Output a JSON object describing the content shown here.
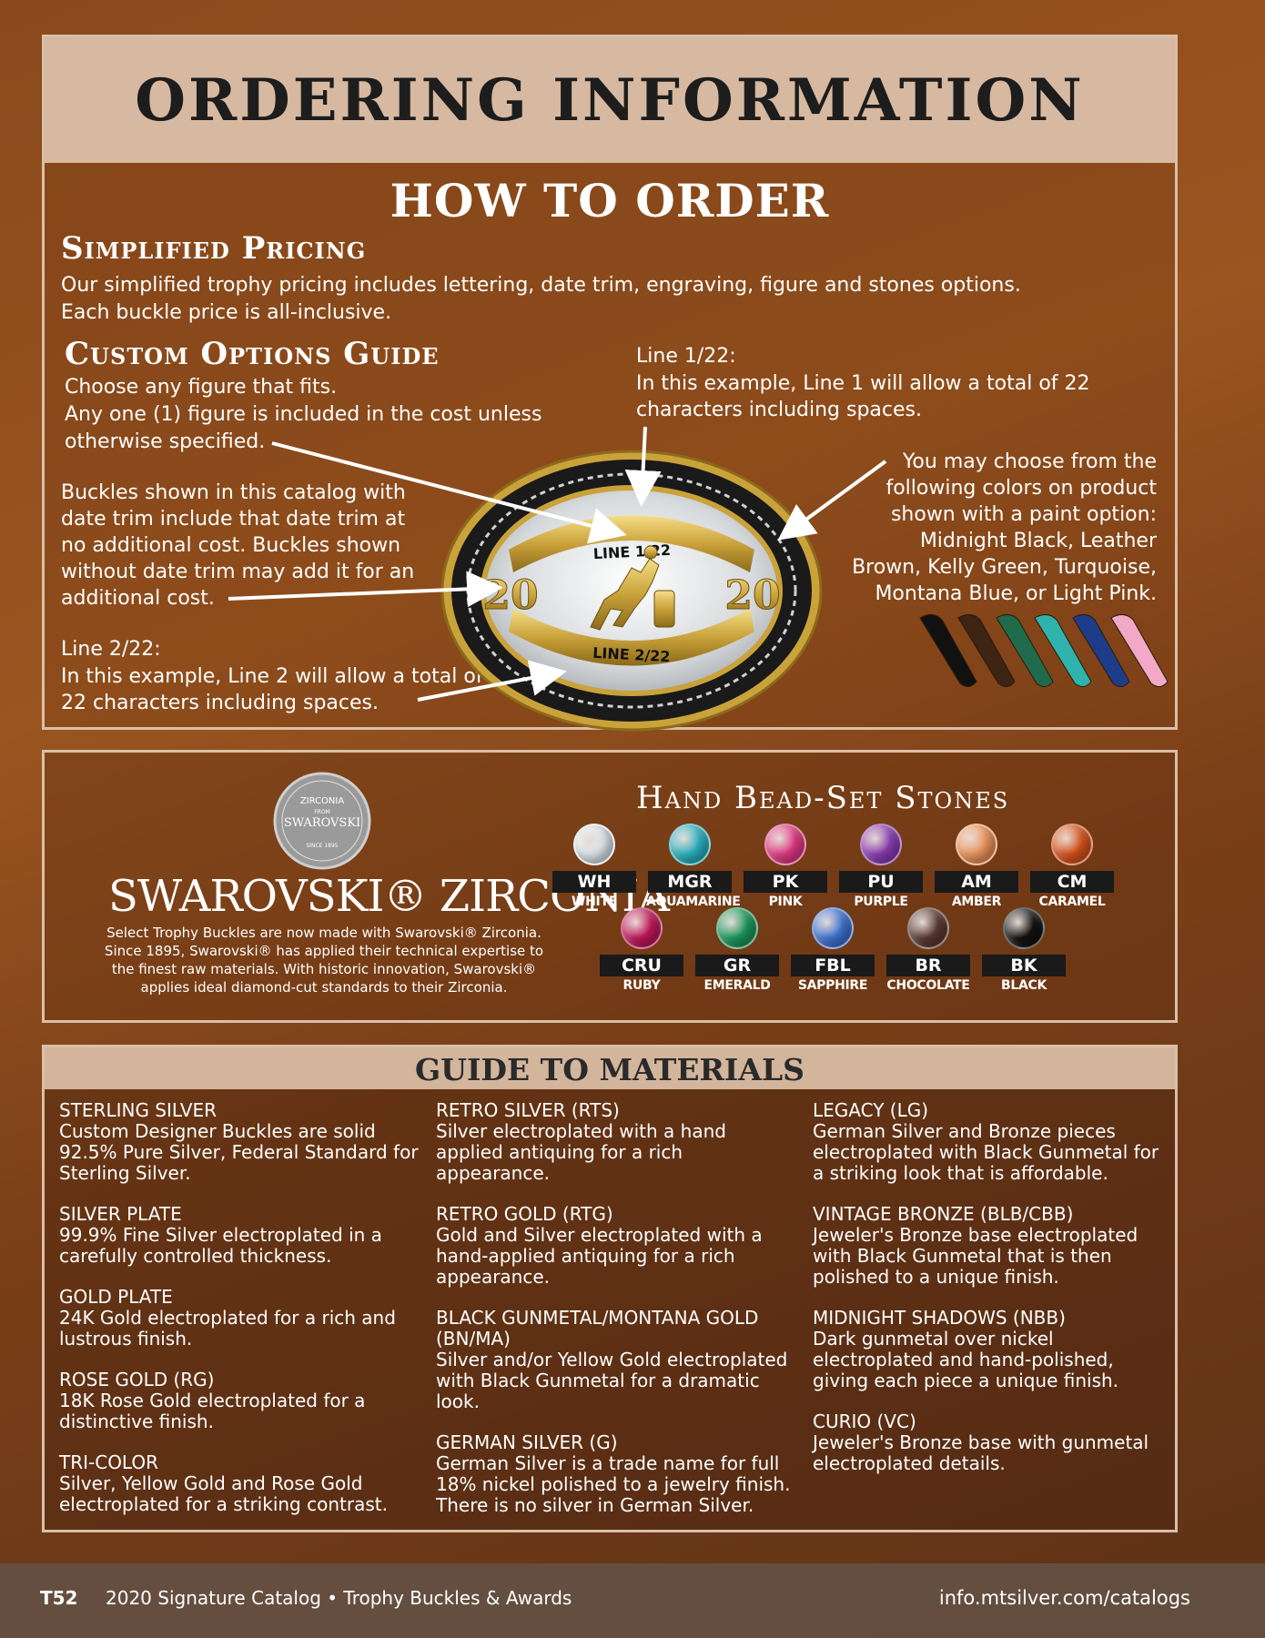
{
  "order": {
    "title": "ORDERING INFORMATION",
    "subtitle": "HOW TO ORDER",
    "simplified_heading": "Simplified Pricing",
    "simplified_line1": "Our simplified trophy pricing includes lettering, date trim, engraving, figure and stones options.",
    "simplified_line2": "Each buckle price is all-inclusive.",
    "custom_heading": "Custom Options Guide",
    "custom_line1": "Choose any figure that fits.",
    "custom_line2": "Any one (1) figure is included in the cost unless",
    "custom_line3": "otherwise specified.",
    "datetrim_line1": "Buckles shown in this catalog with",
    "datetrim_line2": "date trim include that date trim at",
    "datetrim_line3": "no additional cost.  Buckles shown",
    "datetrim_line4": "without date trim may add it for an",
    "datetrim_line5": "additional cost.",
    "line2_head": "Line 2/22:",
    "line2_desc1": "In this example, Line 2 will allow a total of",
    "line2_desc2": "22 characters including spaces.",
    "line1_head": "Line 1/22:",
    "line1_desc1": "In this example, Line 1 will allow a total of 22",
    "line1_desc2": "characters including spaces.",
    "paint_line1": "You may choose from the",
    "paint_line2": "following colors on product",
    "paint_line3": "shown with a paint option:",
    "paint_line4": "Midnight Black, Leather",
    "paint_line5": "Brown, Kelly Green, Turquoise,",
    "paint_line6": "Montana Blue, or Light Pink.",
    "buckle_line1": "LINE 1/22",
    "buckle_line2": "LINE 2/22",
    "buckle_date_left": "20",
    "buckle_date_right": "20",
    "paint_colors": [
      "#111111",
      "#3d2413",
      "#1f6b4c",
      "#2fb3ad",
      "#1d3d8a",
      "#f2a9c8"
    ]
  },
  "stones": {
    "badge_top": "ZIRCONIA",
    "badge_from": "FROM",
    "badge_brand": "SWAROVSKI",
    "badge_since": "SINCE 1895",
    "wordmark": "SWAROVSKI® ZIRCONIA",
    "desc_line1": "Select Trophy Buckles are now made with Swarovski® Zirconia.",
    "desc_line2": "Since 1895, Swarovski® has applied their technical expertise to",
    "desc_line3": "the finest raw materials.  With historic innovation, Swarovski®",
    "desc_line4": "applies ideal diamond-cut standards to their Zirconia.",
    "title": "Hand Bead-Set Stones",
    "items": [
      {
        "code": "WH",
        "name": "WHITE",
        "color": "#dfe9ee"
      },
      {
        "code": "MGR",
        "name": "AQUAMARINE",
        "color": "#2ab3c4"
      },
      {
        "code": "PK",
        "name": "PINK",
        "color": "#e23a86"
      },
      {
        "code": "PU",
        "name": "PURPLE",
        "color": "#8a3db3"
      },
      {
        "code": "AM",
        "name": "AMBER",
        "color": "#f0955c"
      },
      {
        "code": "CM",
        "name": "CARAMEL",
        "color": "#d9531a"
      },
      {
        "code": "CRU",
        "name": "RUBY",
        "color": "#c2185b"
      },
      {
        "code": "GR",
        "name": "EMERALD",
        "color": "#1c9a5e"
      },
      {
        "code": "FBL",
        "name": "SAPPHIRE",
        "color": "#3f74d4"
      },
      {
        "code": "BR",
        "name": "CHOCOLATE",
        "color": "#5a3a33"
      },
      {
        "code": "BK",
        "name": "BLACK",
        "color": "#121212"
      }
    ]
  },
  "materials": {
    "title": "GUIDE TO MATERIALS",
    "columns": [
      [
        {
          "name": "STERLING SILVER",
          "desc": "Custom Designer Buckles are solid 92.5% Pure Silver, Federal Standard for Sterling Silver."
        },
        {
          "name": "SILVER PLATE",
          "desc": "99.9% Fine Silver electroplated in a carefully controlled thickness."
        },
        {
          "name": "GOLD PLATE",
          "desc": "24K Gold electroplated for a rich and lustrous finish."
        },
        {
          "name": "ROSE GOLD (RG)",
          "desc": "18K Rose Gold electroplated for a distinctive finish."
        },
        {
          "name": "TRI-COLOR",
          "desc": "Silver, Yellow Gold and Rose Gold electroplated for a striking contrast."
        }
      ],
      [
        {
          "name": "RETRO SILVER (RTS)",
          "desc": "Silver electroplated with a hand applied antiquing for a rich appearance."
        },
        {
          "name": "RETRO GOLD (RTG)",
          "desc": "Gold and Silver electroplated with a hand-applied antiquing for a rich appearance."
        },
        {
          "name": "BLACK GUNMETAL/MONTANA GOLD (BN/MA)",
          "desc": "Silver and/or Yellow Gold electroplated with Black Gunmetal for a dramatic look."
        },
        {
          "name": "GERMAN SILVER (G)",
          "desc": "German Silver is a trade name for full 18% nickel polished to a jewelry finish. There is no silver in German Silver."
        }
      ],
      [
        {
          "name": "LEGACY (LG)",
          "desc": "German Silver and Bronze pieces electroplated with Black Gunmetal for a striking look that is affordable."
        },
        {
          "name": "VINTAGE BRONZE (BLB/CBB)",
          "desc": "Jeweler's Bronze base electroplated with Black Gunmetal that is then polished to a unique finish."
        },
        {
          "name": "MIDNIGHT SHADOWS (NBB)",
          "desc": "Dark gunmetal over nickel electroplated and hand-polished, giving each piece a unique finish."
        },
        {
          "name": "CURIO (VC)",
          "desc": "Jeweler's Bronze base with gunmetal electroplated details."
        }
      ]
    ]
  },
  "footer": {
    "page": "T52",
    "catalog": "2020 Signature Catalog • Trophy Buckles & Awards",
    "url": "info.mtsilver.com/catalogs"
  }
}
